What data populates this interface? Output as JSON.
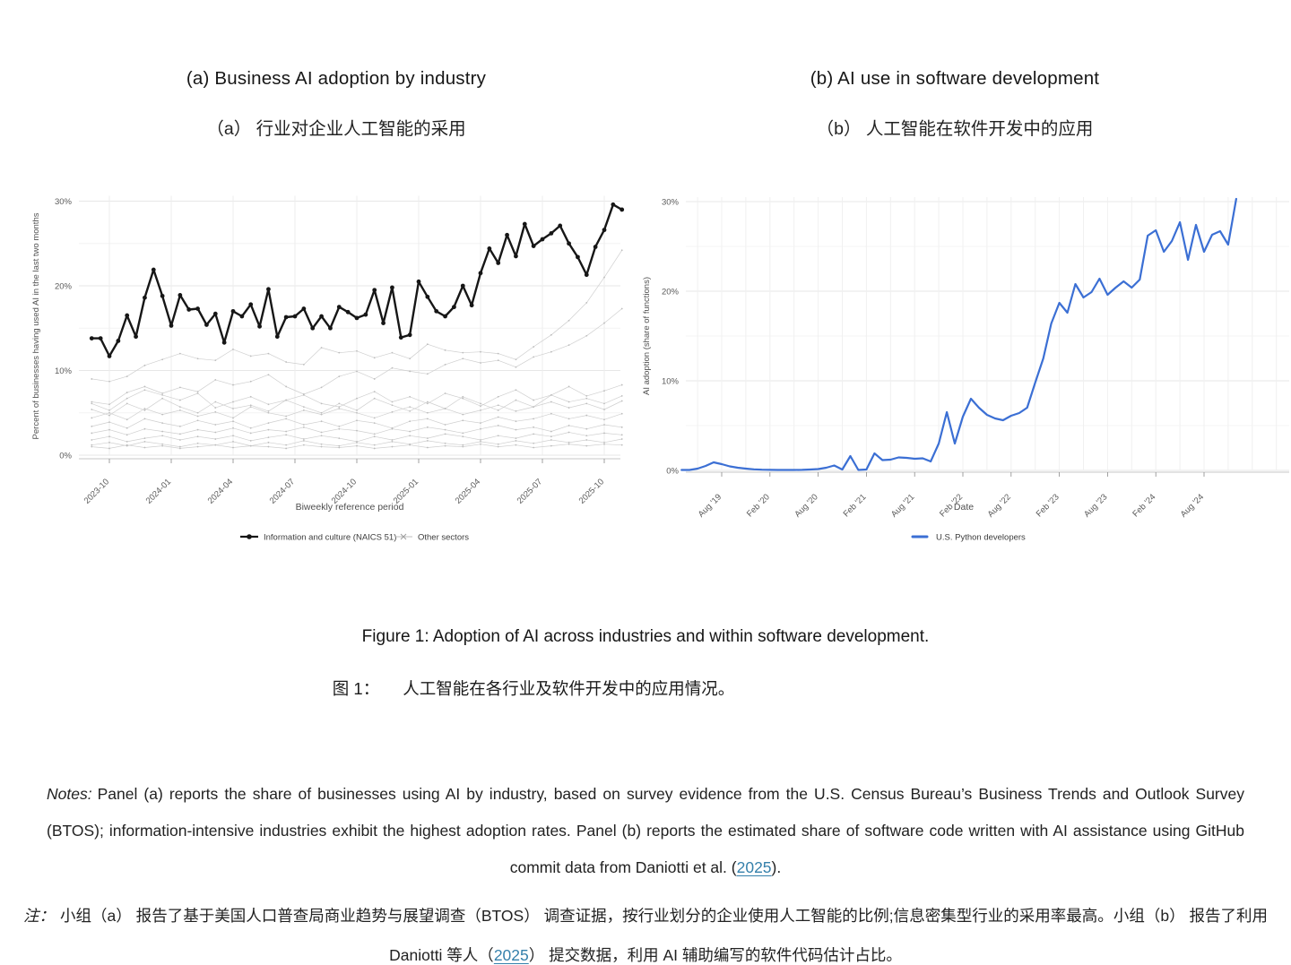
{
  "colors": {
    "accent_blue": "#3b6fd4",
    "series_black": "#161616",
    "series_gray": "#cfcfcf",
    "link": "#3580ab",
    "grid_major": "#e7e7e7",
    "grid_minor": "#f4f4f4",
    "tick_text": "#5a5a5a"
  },
  "caption": {
    "en": "Figure 1: Adoption of AI across industries and within software development.",
    "zh_label": "图 1：",
    "zh_text": "人工智能在各行业及软件开发中的应用情况。"
  },
  "notes_en": {
    "label": "Notes:",
    "before_link": "Panel (a) reports the share of businesses using AI by industry, based on survey evidence from the U.S. Census Bureau’s Business Trends and Outlook Survey (BTOS); information-intensive industries exhibit the highest adoption rates. Panel (b) reports the estimated share of software code written with AI assistance using GitHub commit data from Daniotti et al. (",
    "link": "2025",
    "after_link": ")."
  },
  "notes_zh": {
    "label": "注：",
    "before_link": "小组（a） 报告了基于美国人口普查局商业趋势与展望调查（BTOS） 调查证据，按行业划分的企业使用人工智能的比例;信息密集型行业的采用率最高。小组（b） 报告了利用 Daniotti 等人（",
    "link": "2025",
    "after_link": "） 提交数据，利用 AI 辅助编写的软件代码估计占比。"
  },
  "chart_data": [
    {
      "type": "line",
      "panel": "a",
      "title_en": "(a) Business AI adoption by industry",
      "title_zh": "（a） 行业对企业人工智能的采用",
      "ylabel": "Percent of businesses having used AI in the last two months",
      "xlabel": "Biweekly reference period",
      "ylim": [
        0,
        31
      ],
      "yticks": [
        0,
        10,
        20,
        30
      ],
      "ytick_labels": [
        "0%",
        "10%",
        "20%",
        "30%"
      ],
      "grid": true,
      "legend_position": "bottom",
      "xticklabels": [
        "2023-10",
        "2024-01",
        "2024-04",
        "2024-07",
        "2024-10",
        "2025-01",
        "2025-04",
        "2025-07",
        "2025-10"
      ],
      "x_first_tick_index": 2,
      "x_points_per_tick": 7,
      "legend": [
        {
          "label": "Information and culture (NAICS 51)",
          "color": "#161616",
          "marker": "point"
        },
        {
          "label": "Other sectors",
          "color": "#9e9e9e",
          "marker": "x"
        }
      ],
      "series": [
        {
          "name": "Information and culture (NAICS 51)",
          "color": "#161616",
          "width": 2.4,
          "marker": "circle",
          "values": [
            13.8,
            13.8,
            11.7,
            13.5,
            16.5,
            14.0,
            18.6,
            21.9,
            18.8,
            15.3,
            18.9,
            17.2,
            17.3,
            15.4,
            16.7,
            13.3,
            17.0,
            16.4,
            17.8,
            15.2,
            19.6,
            14.0,
            16.3,
            16.4,
            17.3,
            15.0,
            16.4,
            15.0,
            17.5,
            16.9,
            16.2,
            16.6,
            19.5,
            15.6,
            19.8,
            13.9,
            14.2,
            20.5,
            18.7,
            17.0,
            16.4,
            17.5,
            20.0,
            17.7,
            21.5,
            24.4,
            22.7,
            26.0,
            23.5,
            27.3,
            24.7,
            25.5,
            26.2,
            27.1,
            25.0,
            23.4,
            21.3,
            24.6,
            26.6,
            29.6,
            29.0
          ]
        },
        {
          "name": "Other sectors",
          "color": "#cfcfcf",
          "width": 0.7,
          "marker": "dot",
          "group": [
            [
              9.0,
              8.7,
              9.3,
              10.6,
              11.3,
              12.0,
              11.4,
              11.2,
              12.5,
              11.7,
              12.0,
              11.0,
              10.7,
              12.7,
              12.1,
              12.3,
              11.5,
              12.1,
              11.4,
              13.1,
              12.4,
              12.1,
              12.2,
              12.0,
              11.3,
              12.8,
              14.2,
              15.9,
              18.0,
              21.0,
              24.2
            ],
            [
              6.3,
              6.0,
              7.4,
              8.1,
              7.3,
              8.0,
              7.5,
              8.9,
              8.3,
              8.7,
              9.5,
              8.1,
              7.2,
              8.0,
              9.3,
              9.9,
              9.0,
              10.3,
              9.9,
              9.6,
              10.7,
              11.4,
              10.9,
              11.2,
              10.4,
              11.6,
              12.2,
              13.0,
              14.1,
              15.6,
              17.3
            ],
            [
              6.1,
              5.3,
              6.7,
              7.7,
              7.1,
              6.5,
              7.3,
              5.6,
              6.3,
              6.9,
              6.0,
              6.5,
              7.1,
              6.1,
              5.7,
              6.7,
              7.5,
              6.3,
              6.9,
              6.1,
              7.3,
              6.7,
              5.8,
              6.9,
              7.7,
              6.5,
              7.1,
              8.1,
              7.0,
              7.6,
              8.3
            ],
            [
              4.4,
              5.0,
              4.2,
              5.5,
              4.8,
              5.3,
              4.6,
              5.1,
              4.4,
              5.7,
              5.0,
              4.6,
              5.3,
              4.8,
              5.5,
              5.0,
              4.4,
              5.1,
              5.7,
              5.0,
              5.5,
              4.8,
              5.3,
              5.9,
              5.2,
              5.7,
              6.3,
              5.6,
              6.1,
              5.4,
              6.4
            ],
            [
              3.4,
              3.9,
              3.2,
              4.3,
              3.8,
              3.4,
              4.1,
              3.6,
              4.0,
              3.2,
              3.8,
              4.3,
              3.6,
              4.0,
              3.4,
              4.1,
              3.8,
              3.2,
              4.0,
              4.3,
              3.6,
              4.1,
              3.8,
              4.5,
              4.0,
              4.3,
              4.9,
              4.3,
              4.7,
              4.2,
              4.9
            ],
            [
              2.6,
              3.0,
              2.4,
              3.1,
              2.8,
              2.5,
              3.0,
              2.7,
              3.2,
              2.6,
              3.0,
              2.8,
              3.3,
              2.7,
              3.1,
              2.9,
              2.5,
              3.1,
              2.8,
              3.3,
              3.0,
              2.6,
              3.1,
              3.5,
              3.0,
              3.3,
              2.8,
              3.5,
              3.1,
              3.6,
              3.3
            ],
            [
              1.8,
              2.2,
              1.6,
              2.0,
              2.3,
              1.8,
              2.2,
              1.9,
              2.3,
              1.7,
              2.1,
              2.4,
              1.9,
              2.3,
              2.0,
              1.6,
              2.2,
              1.8,
              2.3,
              2.0,
              2.5,
              2.2,
              1.8,
              2.3,
              2.0,
              2.5,
              2.2,
              2.7,
              2.3,
              2.6,
              2.4
            ],
            [
              1.2,
              1.5,
              1.1,
              1.6,
              1.3,
              1.0,
              1.4,
              1.2,
              1.6,
              1.1,
              1.5,
              1.2,
              1.7,
              1.3,
              1.1,
              1.5,
              1.2,
              1.6,
              1.3,
              1.7,
              1.4,
              1.2,
              1.6,
              1.3,
              1.7,
              1.4,
              1.8,
              1.5,
              1.8,
              1.5,
              1.9
            ],
            [
              1.0,
              0.8,
              1.2,
              0.9,
              1.1,
              0.8,
              1.0,
              1.2,
              0.9,
              1.1,
              1.0,
              0.8,
              1.2,
              1.0,
              0.9,
              1.1,
              0.8,
              1.0,
              1.2,
              0.9,
              1.1,
              1.0,
              1.3,
              1.0,
              1.2,
              0.9,
              1.1,
              1.3,
              1.1,
              1.3,
              1.2
            ],
            [
              5.4,
              4.7,
              6.1,
              5.3,
              6.7,
              5.7,
              5.0,
              6.3,
              5.5,
              5.9,
              5.2,
              6.5,
              5.7,
              5.0,
              6.1,
              5.3,
              6.7,
              5.9,
              5.2,
              6.3,
              5.5,
              6.9,
              6.1,
              5.3,
              6.5,
              5.7,
              7.1,
              6.3,
              6.7,
              6.1,
              7.0
            ]
          ]
        }
      ]
    },
    {
      "type": "line",
      "panel": "b",
      "title_en": "(b) AI use in software development",
      "title_zh": "（b） 人工智能在软件开发中的应用",
      "ylabel": "AI adoption (share of functions)",
      "xlabel": "Date",
      "ylim": [
        0,
        31
      ],
      "yticks": [
        0,
        10,
        20,
        30
      ],
      "ytick_labels": [
        "0%",
        "10%",
        "20%",
        "30%"
      ],
      "grid": true,
      "legend_position": "bottom",
      "xticklabels": [
        "Aug '19",
        "Feb '20",
        "Aug '20",
        "Feb '21",
        "Aug '21",
        "Feb '22",
        "Aug '22",
        "Feb '23",
        "Aug '23",
        "Feb '24",
        "Aug '24"
      ],
      "x_first_tick_index": 5,
      "x_points_per_tick": 6,
      "legend": [
        {
          "label": "U.S. Python developers",
          "color": "#3b6fd4",
          "marker": "line"
        }
      ],
      "series": [
        {
          "name": "U.S. Python developers",
          "color": "#3b6fd4",
          "width": 2.2,
          "marker": "none",
          "values": [
            0.05,
            0.05,
            0.2,
            0.5,
            0.9,
            0.7,
            0.45,
            0.3,
            0.2,
            0.12,
            0.08,
            0.06,
            0.05,
            0.05,
            0.05,
            0.06,
            0.1,
            0.15,
            0.3,
            0.55,
            0.1,
            1.6,
            0.05,
            0.1,
            1.9,
            1.15,
            1.2,
            1.45,
            1.4,
            1.3,
            1.35,
            1.0,
            3.0,
            6.5,
            3.0,
            6.0,
            8.0,
            7.0,
            6.2,
            5.8,
            5.6,
            6.1,
            6.4,
            7.0,
            9.8,
            12.5,
            16.4,
            18.7,
            17.6,
            20.8,
            19.3,
            19.9,
            21.4,
            19.6,
            20.4,
            21.1,
            20.4,
            21.3,
            26.2,
            26.8,
            24.4,
            25.6,
            27.7,
            23.5,
            27.4,
            24.4,
            26.3,
            26.7,
            25.2,
            30.3
          ]
        }
      ]
    }
  ]
}
